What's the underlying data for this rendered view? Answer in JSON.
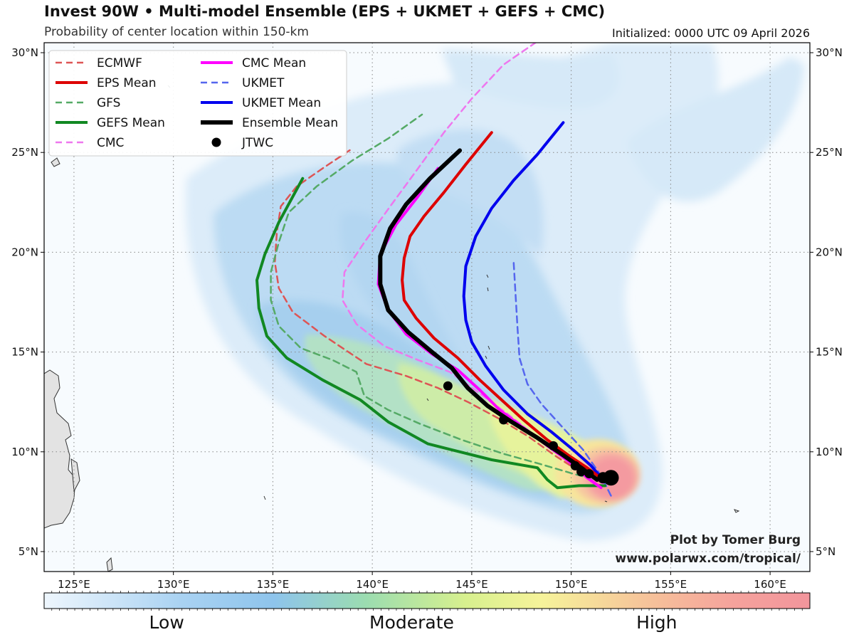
{
  "header": {
    "title": "Invest 90W • Multi-model Ensemble (EPS + UKMET + GEFS + CMC)",
    "subtitle": "Probability of center location within 150-km",
    "initialized": "Initialized: 0000 UTC 09 April 2026"
  },
  "credits": {
    "line1": "Plot by Tomer Burg",
    "line2": "www.polarwx.com/tropical/"
  },
  "map": {
    "lon_range": [
      123.5,
      162
    ],
    "lat_range": [
      4,
      30.5
    ],
    "lon_ticks": [
      {
        "value": 125,
        "label": "125°E"
      },
      {
        "value": 130,
        "label": "130°E"
      },
      {
        "value": 135,
        "label": "135°E"
      },
      {
        "value": 140,
        "label": "140°E"
      },
      {
        "value": 145,
        "label": "145°E"
      },
      {
        "value": 150,
        "label": "150°E"
      },
      {
        "value": 155,
        "label": "155°E"
      },
      {
        "value": 160,
        "label": "160°E"
      }
    ],
    "lat_ticks": [
      {
        "value": 5,
        "label": "5°N"
      },
      {
        "value": 10,
        "label": "10°N"
      },
      {
        "value": 15,
        "label": "15°N"
      },
      {
        "value": 20,
        "label": "20°N"
      },
      {
        "value": 25,
        "label": "25°N"
      },
      {
        "value": 30,
        "label": "30°N"
      }
    ],
    "gridlines": true,
    "probability_scale": "blue (low) → green → yellow → red (high)"
  },
  "legend": {
    "items": [
      {
        "label": "ECMWF",
        "color": "#dd5555",
        "style": "dashed",
        "width": 2.5
      },
      {
        "label": "EPS Mean",
        "color": "#dd0000",
        "style": "solid",
        "width": 4
      },
      {
        "label": "GFS",
        "color": "#55aa66",
        "style": "dashed",
        "width": 2.5
      },
      {
        "label": "GEFS Mean",
        "color": "#118822",
        "style": "solid",
        "width": 4
      },
      {
        "label": "CMC",
        "color": "#ee77ee",
        "style": "dashed",
        "width": 2.5
      },
      {
        "label": "CMC Mean",
        "color": "#ff00ff",
        "style": "solid",
        "width": 4
      },
      {
        "label": "UKMET",
        "color": "#5566ee",
        "style": "dashed",
        "width": 2.5
      },
      {
        "label": "UKMET Mean",
        "color": "#0000ee",
        "style": "solid",
        "width": 4
      },
      {
        "label": "Ensemble Mean",
        "color": "#000000",
        "style": "solid",
        "width": 6
      },
      {
        "label": "JTWC",
        "color": "#000000",
        "style": "dot",
        "width": 0
      }
    ]
  },
  "chart_data": {
    "type": "map",
    "tracks": [
      {
        "name": "ECMWF",
        "points": [
          [
            151.9,
            8.5
          ],
          [
            150.6,
            8.9
          ],
          [
            149.2,
            9.8
          ],
          [
            147.8,
            10.8
          ],
          [
            146.3,
            11.7
          ],
          [
            144.8,
            12.5
          ],
          [
            143.3,
            13.2
          ],
          [
            141.7,
            13.8
          ],
          [
            139.7,
            14.4
          ],
          [
            137.6,
            15.8
          ],
          [
            136.0,
            17.0
          ],
          [
            135.3,
            18.2
          ],
          [
            135.1,
            19.5
          ],
          [
            135.2,
            21.0
          ],
          [
            135.4,
            22.3
          ],
          [
            136.2,
            23.3
          ],
          [
            137.5,
            24.2
          ],
          [
            139.0,
            25.2
          ]
        ]
      },
      {
        "name": "EPS Mean",
        "points": [
          [
            151.6,
            8.6
          ],
          [
            150.8,
            9.2
          ],
          [
            149.9,
            9.8
          ],
          [
            148.8,
            10.6
          ],
          [
            147.6,
            11.6
          ],
          [
            146.5,
            12.6
          ],
          [
            145.4,
            13.6
          ],
          [
            144.3,
            14.7
          ],
          [
            143.1,
            15.7
          ],
          [
            142.2,
            16.7
          ],
          [
            141.6,
            17.6
          ],
          [
            141.5,
            18.6
          ],
          [
            141.6,
            19.7
          ],
          [
            141.9,
            20.8
          ],
          [
            142.6,
            21.8
          ],
          [
            143.6,
            23.0
          ],
          [
            144.7,
            24.4
          ],
          [
            146.0,
            26.0
          ]
        ]
      },
      {
        "name": "GFS",
        "points": [
          [
            151.6,
            8.5
          ],
          [
            150.1,
            8.9
          ],
          [
            148.4,
            9.4
          ],
          [
            146.6,
            9.9
          ],
          [
            144.5,
            10.6
          ],
          [
            142.4,
            11.4
          ],
          [
            140.8,
            12.1
          ],
          [
            139.6,
            12.8
          ],
          [
            139.2,
            14.0
          ],
          [
            138.0,
            14.6
          ],
          [
            136.4,
            15.2
          ],
          [
            135.3,
            16.3
          ],
          [
            134.9,
            17.6
          ],
          [
            134.9,
            19.0
          ],
          [
            135.3,
            20.5
          ],
          [
            135.8,
            22.0
          ],
          [
            137.2,
            23.3
          ],
          [
            139.0,
            24.6
          ],
          [
            140.8,
            25.7
          ],
          [
            142.5,
            26.9
          ]
        ]
      },
      {
        "name": "GEFS Mean",
        "points": [
          [
            151.7,
            8.3
          ],
          [
            150.4,
            8.3
          ],
          [
            149.3,
            8.2
          ],
          [
            148.8,
            8.6
          ],
          [
            148.3,
            9.2
          ],
          [
            146.0,
            9.6
          ],
          [
            142.8,
            10.4
          ],
          [
            140.8,
            11.5
          ],
          [
            139.4,
            12.6
          ],
          [
            137.5,
            13.6
          ],
          [
            135.7,
            14.7
          ],
          [
            134.7,
            15.8
          ],
          [
            134.3,
            17.2
          ],
          [
            134.2,
            18.6
          ],
          [
            134.6,
            19.9
          ],
          [
            135.3,
            21.5
          ],
          [
            136.5,
            23.7
          ]
        ]
      },
      {
        "name": "CMC",
        "points": [
          [
            151.8,
            8.3
          ],
          [
            150.8,
            8.8
          ],
          [
            149.6,
            9.7
          ],
          [
            148.2,
            10.8
          ],
          [
            146.8,
            11.9
          ],
          [
            145.3,
            13.0
          ],
          [
            143.9,
            14.0
          ],
          [
            142.3,
            14.6
          ],
          [
            140.6,
            15.3
          ],
          [
            139.2,
            16.4
          ],
          [
            138.5,
            17.6
          ],
          [
            138.6,
            19.0
          ],
          [
            139.6,
            20.5
          ],
          [
            140.9,
            22.3
          ],
          [
            142.3,
            24.2
          ],
          [
            143.6,
            26.0
          ],
          [
            145.0,
            27.7
          ],
          [
            146.6,
            29.4
          ],
          [
            148.2,
            30.5
          ]
        ]
      },
      {
        "name": "CMC Mean",
        "points": [
          [
            151.5,
            8.2
          ],
          [
            150.8,
            8.7
          ],
          [
            149.9,
            9.5
          ],
          [
            148.8,
            10.3
          ],
          [
            147.6,
            11.2
          ],
          [
            146.4,
            12.1
          ],
          [
            145.4,
            13.1
          ],
          [
            144.3,
            14.1
          ],
          [
            143.0,
            14.9
          ],
          [
            141.7,
            15.9
          ],
          [
            140.8,
            17.1
          ],
          [
            140.3,
            18.4
          ],
          [
            140.4,
            19.9
          ],
          [
            141.2,
            21.4
          ],
          [
            142.3,
            22.8
          ],
          [
            143.3,
            24.2
          ]
        ]
      },
      {
        "name": "UKMET",
        "points": [
          [
            152.0,
            7.8
          ],
          [
            151.5,
            8.8
          ],
          [
            150.6,
            10.1
          ],
          [
            149.5,
            11.3
          ],
          [
            148.5,
            12.4
          ],
          [
            147.8,
            13.4
          ],
          [
            147.4,
            14.7
          ],
          [
            147.3,
            16.2
          ],
          [
            147.2,
            17.9
          ],
          [
            147.1,
            19.6
          ]
        ]
      },
      {
        "name": "UKMET Mean",
        "points": [
          [
            151.6,
            8.6
          ],
          [
            151.0,
            9.3
          ],
          [
            150.1,
            10.1
          ],
          [
            149.0,
            11.0
          ],
          [
            147.8,
            11.9
          ],
          [
            146.6,
            13.1
          ],
          [
            145.7,
            14.3
          ],
          [
            145.0,
            15.5
          ],
          [
            144.7,
            16.6
          ],
          [
            144.6,
            17.8
          ],
          [
            144.7,
            19.3
          ],
          [
            145.2,
            20.8
          ],
          [
            146.0,
            22.2
          ],
          [
            147.1,
            23.6
          ],
          [
            148.3,
            24.9
          ],
          [
            149.6,
            26.5
          ]
        ]
      },
      {
        "name": "Ensemble Mean",
        "points": [
          [
            151.3,
            8.6
          ],
          [
            150.5,
            9.2
          ],
          [
            149.5,
            9.9
          ],
          [
            148.3,
            10.7
          ],
          [
            147.0,
            11.5
          ],
          [
            145.8,
            12.3
          ],
          [
            144.8,
            13.2
          ],
          [
            144.0,
            14.2
          ],
          [
            143.0,
            15.0
          ],
          [
            141.8,
            16.0
          ],
          [
            140.8,
            17.1
          ],
          [
            140.4,
            18.4
          ],
          [
            140.4,
            19.8
          ],
          [
            140.9,
            21.2
          ],
          [
            141.7,
            22.4
          ],
          [
            142.9,
            23.7
          ],
          [
            144.4,
            25.1
          ]
        ]
      }
    ],
    "jtwc_points": [
      [
        152.0,
        8.7
      ],
      [
        151.6,
        8.7
      ],
      [
        150.9,
        8.9
      ],
      [
        150.5,
        9.0
      ],
      [
        150.2,
        9.3
      ],
      [
        149.1,
        10.3
      ],
      [
        146.6,
        11.6
      ],
      [
        143.8,
        13.3
      ]
    ]
  },
  "colorbar": {
    "labels": [
      {
        "text": "Low",
        "pos": 0.16
      },
      {
        "text": "Moderate",
        "pos": 0.48
      },
      {
        "text": "High",
        "pos": 0.8
      }
    ]
  }
}
